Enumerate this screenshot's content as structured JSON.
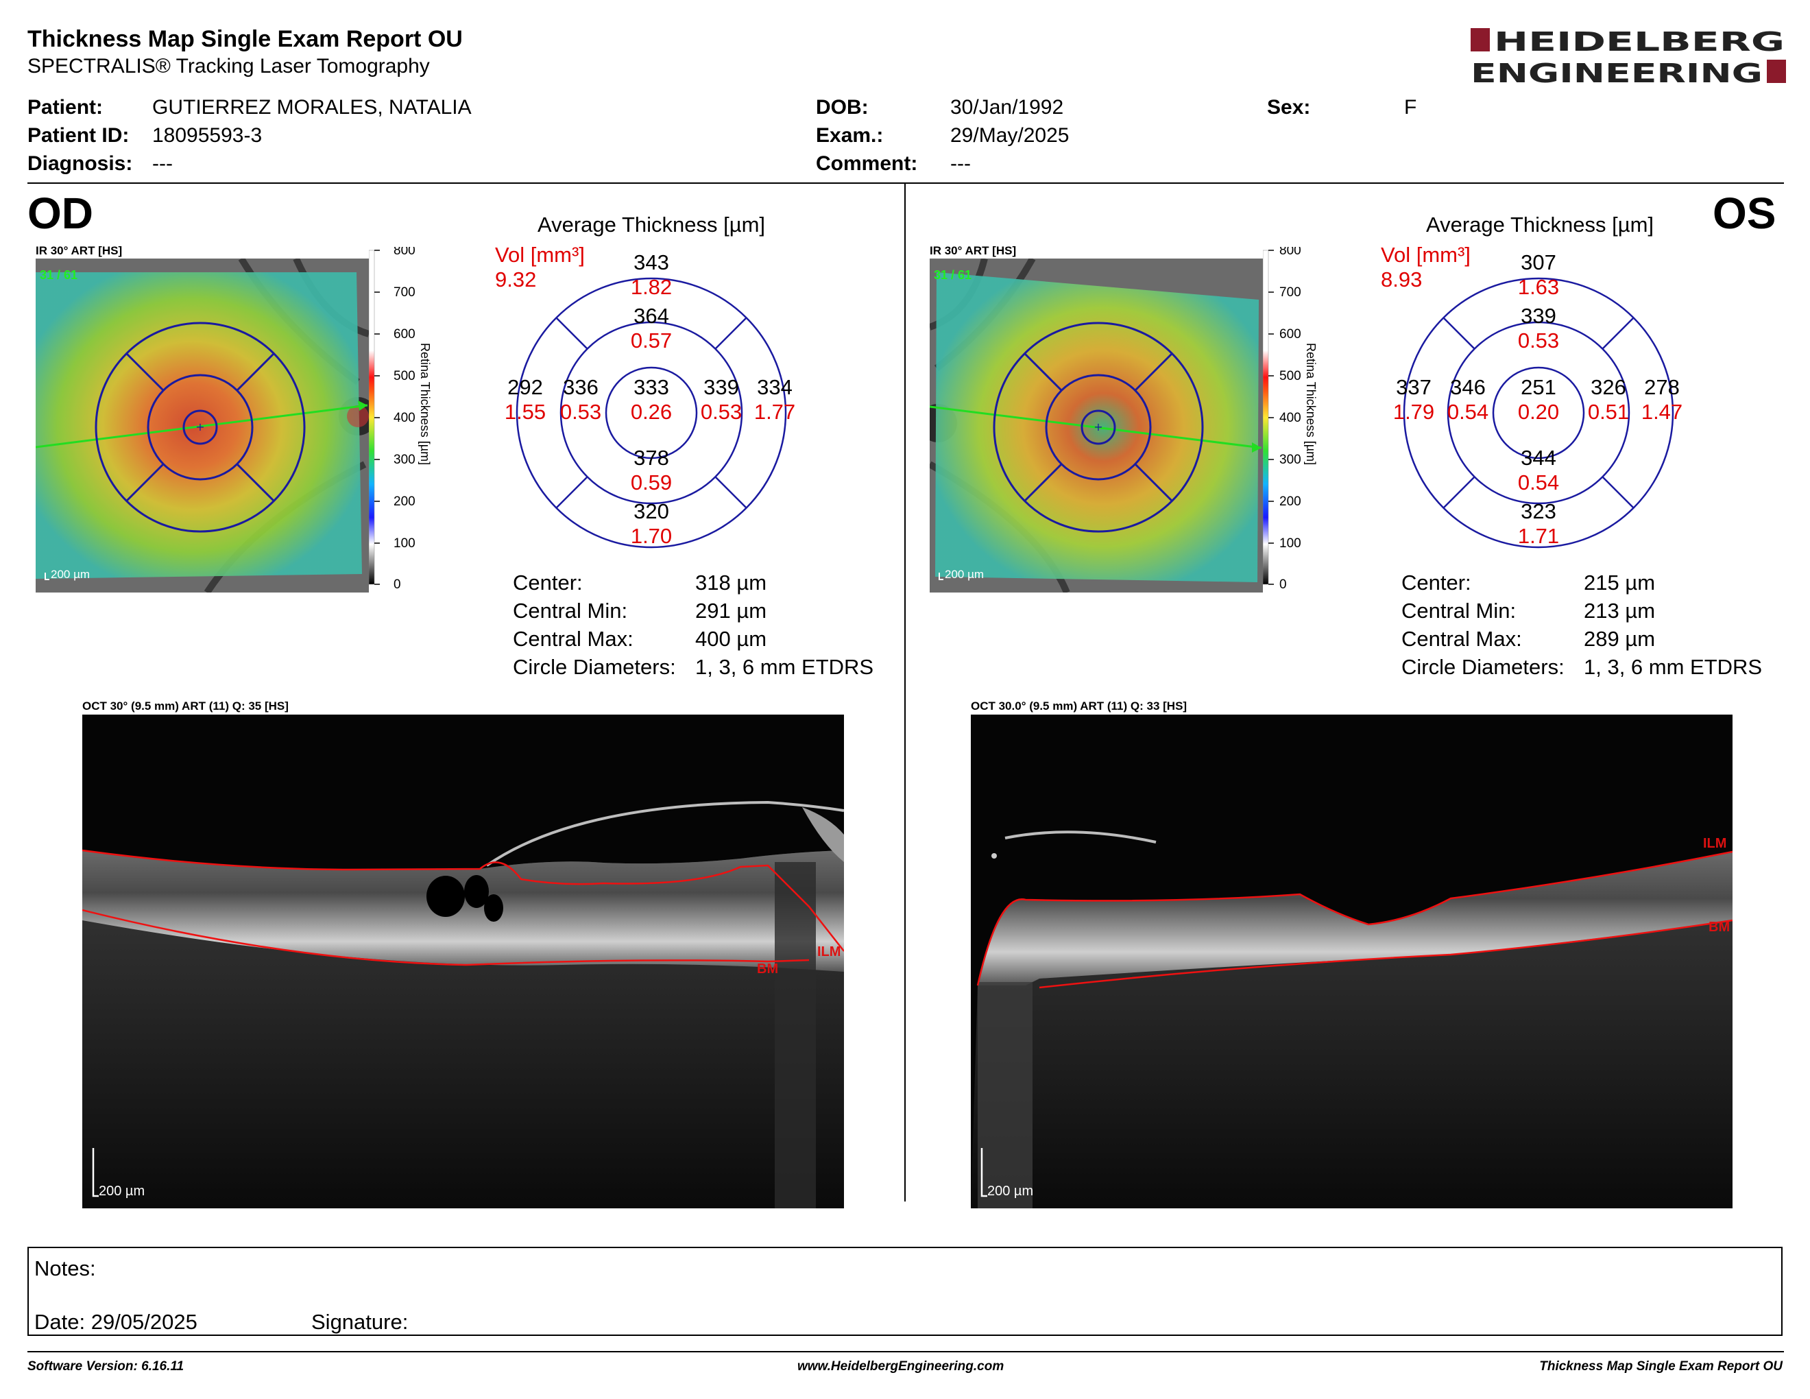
{
  "header": {
    "title": "Thickness Map Single Exam Report OU",
    "subtitle": "SPECTRALIS® Tracking Laser Tomography",
    "logo_line1": "HEIDELBERG",
    "logo_line2": "ENGINEERING",
    "logo_color": "#8b1a2b"
  },
  "patient": {
    "patient_label": "Patient:",
    "patient_value": "GUTIERREZ MORALES, NATALIA",
    "id_label": "Patient ID:",
    "id_value": "18095593-3",
    "diagnosis_label": "Diagnosis:",
    "diagnosis_value": "---",
    "dob_label": "DOB:",
    "dob_value": "30/Jan/1992",
    "exam_label": "Exam.:",
    "exam_value": "29/May/2025",
    "comment_label": "Comment:",
    "comment_value": "---",
    "sex_label": "Sex:",
    "sex_value": "F"
  },
  "colorbar": {
    "ticks": [
      "800",
      "700",
      "600",
      "500",
      "400",
      "300",
      "200",
      "100",
      "0"
    ],
    "title": "Retina Thickness [µm]"
  },
  "od": {
    "eye": "OD",
    "ir_label": "IR 30° ART [HS]",
    "ir_counter": "31 / 61",
    "scale": "200 µm",
    "avg_title": "Average Thickness [µm]",
    "vol_label": "Vol [mm³]",
    "vol_total": "9.32",
    "sectors": {
      "outer_sup": [
        "343",
        "1.82"
      ],
      "inner_sup": [
        "364",
        "0.57"
      ],
      "outer_temp": [
        "292",
        "1.55"
      ],
      "inner_temp": [
        "336",
        "0.53"
      ],
      "center": [
        "333",
        "0.26"
      ],
      "inner_nas": [
        "339",
        "0.53"
      ],
      "outer_nas": [
        "334",
        "1.77"
      ],
      "inner_inf": [
        "378",
        "0.59"
      ],
      "outer_inf": [
        "320",
        "1.70"
      ]
    },
    "stats": [
      {
        "label": "Center:",
        "value": "318 µm"
      },
      {
        "label": "Central Min:",
        "value": "291 µm"
      },
      {
        "label": "Central Max:",
        "value": "400 µm"
      },
      {
        "label": "Circle Diameters:",
        "value": "1, 3, 6 mm ETDRS"
      }
    ],
    "oct_label": "OCT 30° (9.5 mm) ART (11) Q: 35 [HS]",
    "oct_scale": "200 µm",
    "ilm": "ILM",
    "bm": "BM"
  },
  "os": {
    "eye": "OS",
    "ir_label": "IR 30° ART [HS]",
    "ir_counter": "31 / 61",
    "scale": "200 µm",
    "avg_title": "Average Thickness [µm]",
    "vol_label": "Vol [mm³]",
    "vol_total": "8.93",
    "sectors": {
      "outer_sup": [
        "307",
        "1.63"
      ],
      "inner_sup": [
        "339",
        "0.53"
      ],
      "outer_temp": [
        "337",
        "1.79"
      ],
      "inner_temp": [
        "346",
        "0.54"
      ],
      "center": [
        "251",
        "0.20"
      ],
      "inner_nas": [
        "326",
        "0.51"
      ],
      "outer_nas": [
        "278",
        "1.47"
      ],
      "inner_inf": [
        "344",
        "0.54"
      ],
      "outer_inf": [
        "323",
        "1.71"
      ]
    },
    "stats": [
      {
        "label": "Center:",
        "value": "215 µm"
      },
      {
        "label": "Central Min:",
        "value": "213 µm"
      },
      {
        "label": "Central Max:",
        "value": "289 µm"
      },
      {
        "label": "Circle Diameters:",
        "value": "1, 3, 6 mm ETDRS"
      }
    ],
    "oct_label": "OCT 30.0° (9.5 mm) ART (11) Q: 33 [HS]",
    "oct_scale": "200 µm",
    "ilm": "ILM",
    "bm": "BM"
  },
  "notes": {
    "notes_label": "Notes:",
    "date_label": "Date: 29/05/2025",
    "signature_label": "Signature:"
  },
  "footer": {
    "software": "Software Version: 6.16.11",
    "website": "www.HeidelbergEngineering.com",
    "report_name": "Thickness Map Single Exam Report OU"
  }
}
